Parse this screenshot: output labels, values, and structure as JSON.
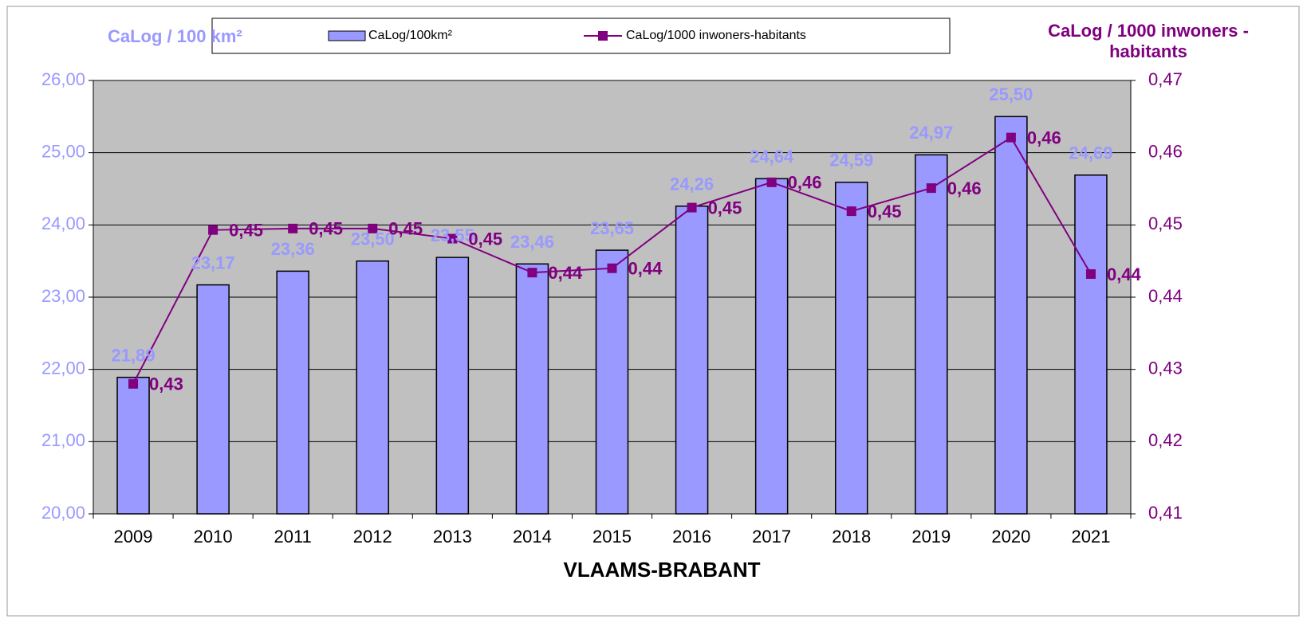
{
  "chart_data": {
    "type": "bar",
    "xlabel": "VLAAMS-BRABANT",
    "ylabel": "CaLog / 100 km²",
    "y2label": "CaLog / 1000 inwoners - habitants",
    "categories": [
      "2009",
      "2010",
      "2011",
      "2012",
      "2013",
      "2014",
      "2015",
      "2016",
      "2017",
      "2018",
      "2019",
      "2020",
      "2021"
    ],
    "series": [
      {
        "name": "CaLog/100km²",
        "type": "bar",
        "color": "#9999ff",
        "values": [
          21.89,
          23.17,
          23.36,
          23.5,
          23.55,
          23.46,
          23.65,
          24.26,
          24.64,
          24.59,
          24.97,
          25.5,
          24.69
        ],
        "value_labels": [
          "21,89",
          "23,17",
          "23,36",
          "23,50",
          "23,55",
          "23,46",
          "23,65",
          "24,26",
          "24,64",
          "24,59",
          "24,97",
          "25,50",
          "24,69"
        ]
      },
      {
        "name": "CaLog/1000 inwoners-habitants",
        "type": "line",
        "axis": "y2",
        "color": "#800080",
        "values": [
          0.428,
          0.4493,
          0.4495,
          0.4495,
          0.4481,
          0.4434,
          0.444,
          0.4524,
          0.4559,
          0.4519,
          0.4551,
          0.4621,
          0.4432
        ],
        "value_labels": [
          "0,43",
          "0,45",
          "0,45",
          "0,45",
          "0,45",
          "0,44",
          "0,44",
          "0,45",
          "0,46",
          "0,45",
          "0,46",
          "0,46",
          "0,44"
        ]
      }
    ],
    "ylim": [
      20,
      26
    ],
    "yticks": [
      {
        "value": 20,
        "label": "20,00"
      },
      {
        "value": 21,
        "label": "21,00"
      },
      {
        "value": 22,
        "label": "22,00"
      },
      {
        "value": 23,
        "label": "23,00"
      },
      {
        "value": 24,
        "label": "24,00"
      },
      {
        "value": 25,
        "label": "25,00"
      },
      {
        "value": 26,
        "label": "26,00"
      }
    ],
    "y2lim": [
      0.41,
      0.47
    ],
    "y2ticks": [
      {
        "value": 0.41,
        "label": "0,41"
      },
      {
        "value": 0.42,
        "label": "0,42"
      },
      {
        "value": 0.43,
        "label": "0,43"
      },
      {
        "value": 0.44,
        "label": "0,44"
      },
      {
        "value": 0.45,
        "label": "0,45"
      },
      {
        "value": 0.46,
        "label": "0,46"
      },
      {
        "value": 0.47,
        "label": "0,47"
      }
    ],
    "grid": true,
    "legend": "top"
  }
}
